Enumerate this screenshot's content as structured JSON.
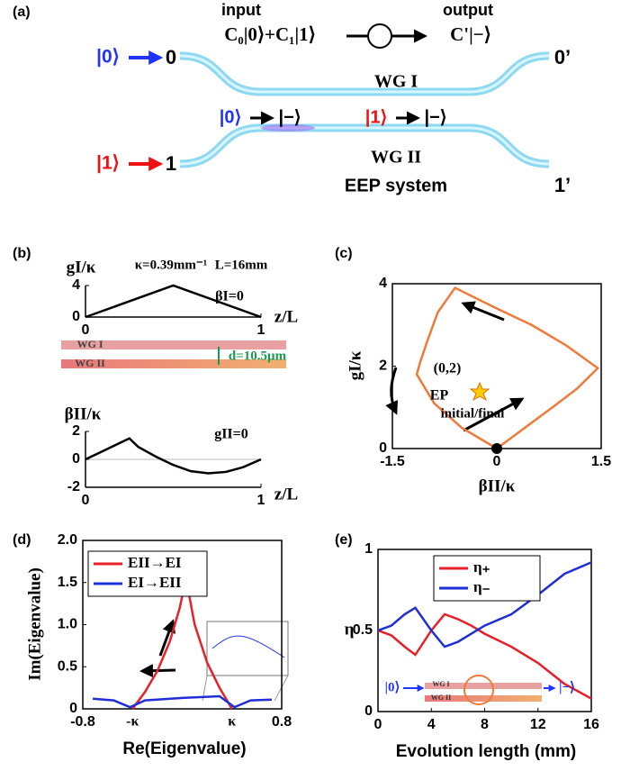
{
  "diagram": {
    "panel_label": "(a)",
    "input": "input",
    "input_state": "C₀|0⟩+C₁|1⟩",
    "output": "output",
    "output_state": "C'|−⟩",
    "in0_state": "|0⟩",
    "port0": "0",
    "port0_out": "0’",
    "wg1": "WG I",
    "conv0_from": "|0⟩",
    "conv0_to": "|−⟩",
    "conv1_from": "|1⟩",
    "conv1_to": "|−⟩",
    "wg2": "WG II",
    "system": "EEP system",
    "in1_state": "|1⟩",
    "port1": "1",
    "port1_out": "1’"
  },
  "chart_data": [
    {
      "type": "line",
      "panel_label": "(b)",
      "xlabel": "z/L",
      "ylabel": "gI/κ",
      "frame": false,
      "annotations": [
        "κ=0.39mm⁻¹",
        "L=16mm",
        "βI=0",
        "WG I",
        "WG II",
        "d=10.5μm"
      ],
      "xlim": [
        0,
        1
      ],
      "ylim": [
        0,
        4
      ],
      "xticks": [
        0,
        1
      ],
      "yticks": [
        0,
        4
      ],
      "series": [
        {
          "color": "#000000",
          "x": [
            0,
            0.5,
            1
          ],
          "values": [
            0,
            4,
            0
          ]
        }
      ]
    },
    {
      "type": "line",
      "xlabel": "z/L",
      "ylabel": "βII/κ",
      "frame": false,
      "zero_line": true,
      "annotations": [
        "gII=0"
      ],
      "xlim": [
        0,
        1
      ],
      "ylim": [
        -2,
        2
      ],
      "xticks": [
        0,
        1
      ],
      "yticks": [
        -2,
        0,
        2
      ],
      "series": [
        {
          "color": "#000000",
          "x": [
            0,
            0.1,
            0.2,
            0.25,
            0.3,
            0.4,
            0.5,
            0.6,
            0.7,
            0.8,
            0.9,
            1
          ],
          "values": [
            0,
            0.6,
            1.2,
            1.5,
            0.9,
            0.2,
            -0.4,
            -0.85,
            -1.0,
            -0.9,
            -0.55,
            0
          ]
        }
      ]
    },
    {
      "type": "line",
      "panel_label": "(c)",
      "xlabel": "βII/κ",
      "ylabel": "gI/κ",
      "frame": true,
      "start_marker": true,
      "annotations": [
        "(0,2)",
        "EP",
        "initial/final"
      ],
      "xlim": [
        -1.5,
        1.5
      ],
      "ylim": [
        0,
        4
      ],
      "xticks": [
        -1.5,
        0,
        1.5
      ],
      "yticks": [
        0,
        2,
        4
      ],
      "series": [
        {
          "color": "#f07a3a",
          "x": [
            0,
            0.4,
            0.8,
            1.15,
            1.45,
            1.0,
            0.5,
            0,
            -0.6,
            -0.85,
            -1.0,
            -1.1,
            -1.15,
            -0.9,
            -0.5,
            0
          ],
          "values": [
            0,
            0.5,
            1.0,
            1.45,
            1.95,
            2.5,
            3.0,
            3.4,
            3.9,
            3.3,
            2.6,
            2.1,
            1.8,
            1.1,
            0.5,
            0
          ]
        }
      ]
    },
    {
      "type": "line",
      "panel_label": "(d)",
      "xlabel": "Re(Eigenvalue)",
      "ylabel": "Im(Eigenvalue)",
      "frame": true,
      "xlim": [
        -0.8,
        0.8
      ],
      "ylim": [
        0,
        2
      ],
      "xticks": [
        -0.8,
        {
          "value": -0.4,
          "label": "-κ"
        },
        {
          "value": 0.4,
          "label": "κ"
        },
        0.8
      ],
      "yticks": [
        0,
        0.5,
        {
          "value": 1,
          "label": "1.0"
        },
        1.5,
        {
          "value": 2,
          "label": "2.0"
        }
      ],
      "series": [
        {
          "name": "EII→EI",
          "color": "#e8202a",
          "x": [
            -0.4,
            -0.3,
            -0.2,
            -0.1,
            -0.02,
            0.03,
            0.1,
            0.2,
            0.3,
            0.4
          ],
          "values": [
            0,
            0.2,
            0.45,
            0.8,
            1.2,
            1.55,
            1.0,
            0.55,
            0.25,
            0
          ]
        },
        {
          "name": "EI→EII",
          "color": "#1f2fd8",
          "x": [
            -0.72,
            -0.55,
            -0.42,
            -0.3,
            0,
            0.3,
            0.42,
            0.55,
            0.72
          ],
          "values": [
            0.12,
            0.1,
            0.02,
            0.1,
            0.13,
            0.15,
            0.02,
            0.1,
            0.11
          ]
        }
      ]
    },
    {
      "type": "line",
      "panel_label": "(e)",
      "xlabel": "Evolution length (mm)",
      "ylabel": "η",
      "frame": true,
      "annotations": [
        "|0⟩",
        "WG I",
        "WG II",
        "|−⟩"
      ],
      "xlim": [
        0,
        16
      ],
      "ylim": [
        0,
        1
      ],
      "xticks": [
        0,
        4,
        8,
        12,
        16
      ],
      "yticks": [
        0,
        0.5,
        1
      ],
      "series": [
        {
          "name": "η₊",
          "color": "#e8202a",
          "x": [
            0,
            1,
            2,
            2.8,
            4,
            5,
            6,
            7,
            8,
            10,
            12,
            14,
            16
          ],
          "values": [
            0.5,
            0.47,
            0.4,
            0.35,
            0.5,
            0.6,
            0.57,
            0.53,
            0.48,
            0.4,
            0.3,
            0.17,
            0.08
          ]
        },
        {
          "name": "η₋",
          "color": "#1f2fd8",
          "x": [
            0,
            1,
            2,
            2.8,
            4,
            5,
            6,
            7,
            8,
            10,
            12,
            14,
            16
          ],
          "values": [
            0.5,
            0.53,
            0.6,
            0.64,
            0.5,
            0.4,
            0.43,
            0.48,
            0.53,
            0.6,
            0.72,
            0.85,
            0.92
          ]
        }
      ]
    }
  ]
}
